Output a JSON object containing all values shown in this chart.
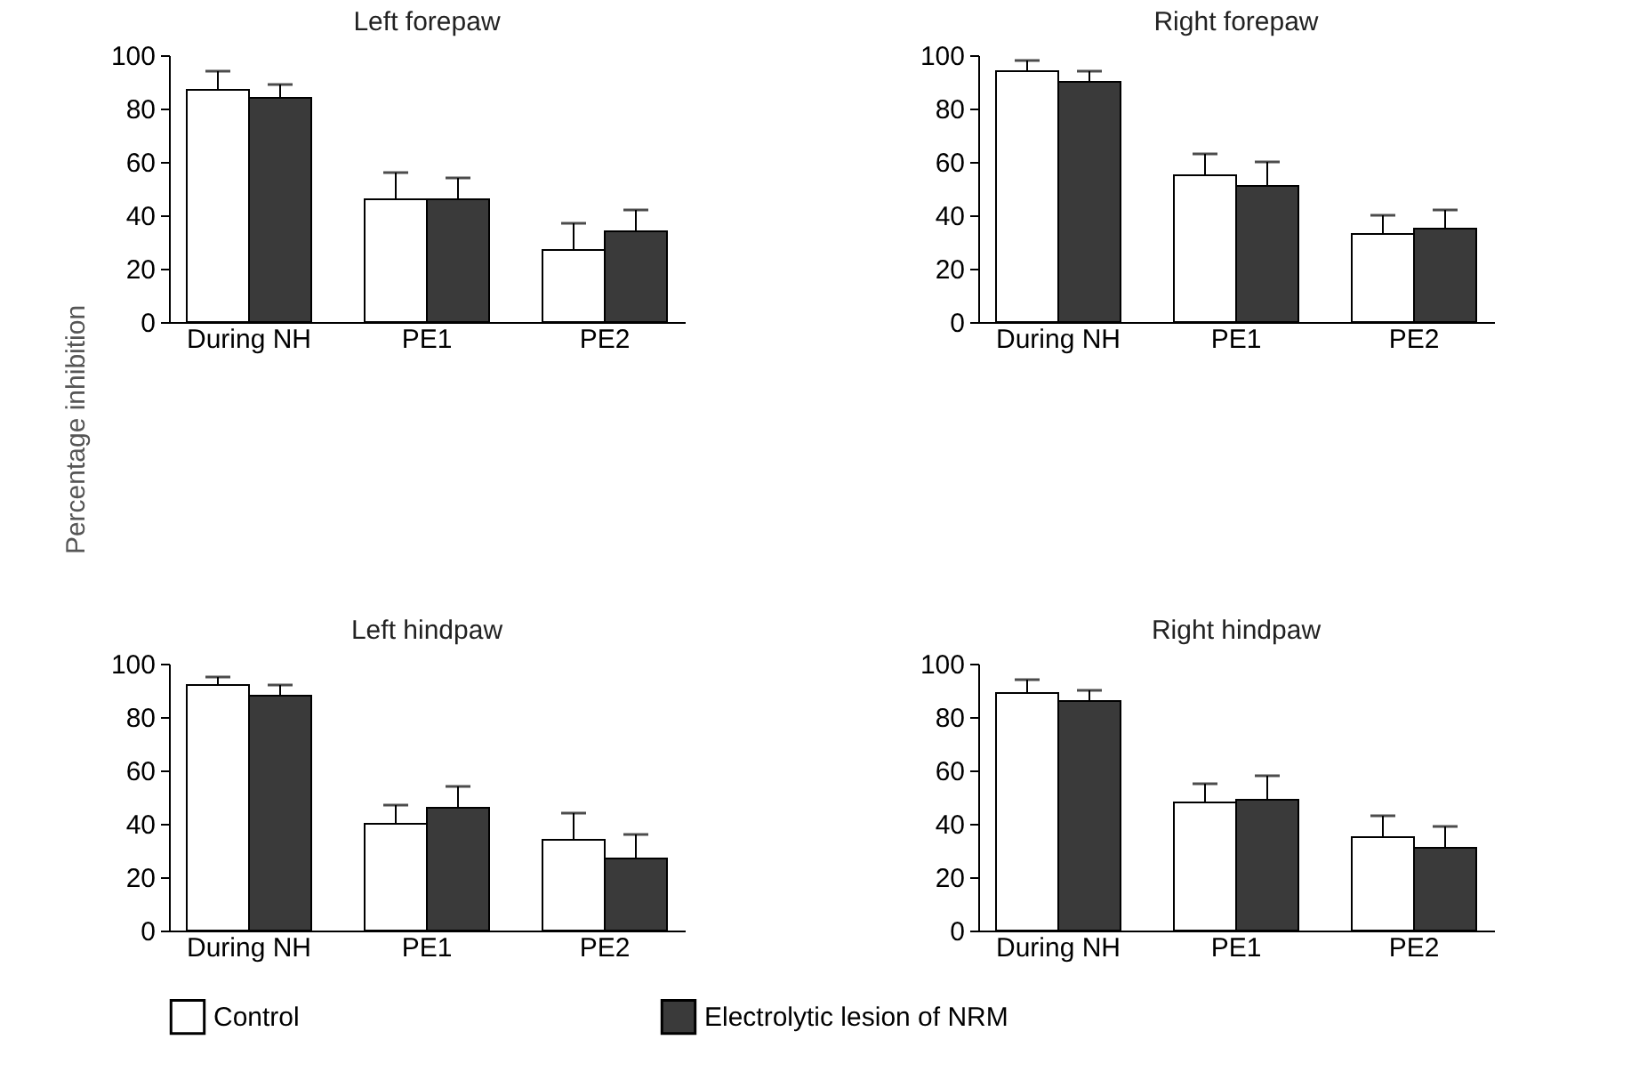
{
  "chart_data": [
    {
      "type": "bar",
      "title": "Left forepaw",
      "ylabel": "Percentage inhibition",
      "categories": [
        "During NH",
        "PE1",
        "PE2"
      ],
      "ylim": [
        0,
        100
      ],
      "yticks": [
        0,
        20,
        40,
        60,
        80,
        100
      ],
      "grid": false,
      "series": [
        {
          "color": "#ffffff",
          "values": [
            87,
            46,
            27
          ],
          "errors": [
            [
              87,
              94
            ],
            [
              46,
              56
            ],
            [
              27,
              37
            ]
          ]
        },
        {
          "color": "#3a3a3a",
          "values": [
            84,
            46,
            34
          ],
          "errors": [
            [
              84,
              89
            ],
            [
              46,
              54
            ],
            [
              34,
              42
            ]
          ]
        }
      ]
    },
    {
      "type": "bar",
      "title": "Right forepaw",
      "categories": [
        "During NH",
        "PE1",
        "PE2"
      ],
      "ylim": [
        0,
        100
      ],
      "yticks": [
        0,
        20,
        40,
        60,
        80,
        100
      ],
      "grid": false,
      "series": [
        {
          "color": "#ffffff",
          "values": [
            94,
            55,
            33
          ],
          "errors": [
            [
              94,
              98
            ],
            [
              55,
              63
            ],
            [
              33,
              40
            ]
          ]
        },
        {
          "color": "#3a3a3a",
          "values": [
            90,
            51,
            35
          ],
          "errors": [
            [
              90,
              94
            ],
            [
              51,
              60
            ],
            [
              35,
              42
            ]
          ]
        }
      ]
    },
    {
      "type": "bar",
      "title": "Left hindpaw",
      "categories": [
        "During NH",
        "PE1",
        "PE2"
      ],
      "ylim": [
        0,
        100
      ],
      "yticks": [
        0,
        20,
        40,
        60,
        80,
        100
      ],
      "grid": false,
      "legend": "bottom",
      "series": [
        {
          "name": "Control",
          "color": "#ffffff",
          "values": [
            92,
            40,
            34
          ],
          "errors": [
            [
              92,
              95
            ],
            [
              40,
              47
            ],
            [
              34,
              44
            ]
          ]
        },
        {
          "name": "Electrolytic lesion of NRM",
          "color": "#3a3a3a",
          "values": [
            88,
            46,
            27
          ],
          "errors": [
            [
              88,
              92
            ],
            [
              46,
              54
            ],
            [
              27,
              36
            ]
          ]
        }
      ]
    },
    {
      "type": "bar",
      "title": "Right hindpaw",
      "categories": [
        "During NH",
        "PE1",
        "PE2"
      ],
      "ylim": [
        0,
        100
      ],
      "yticks": [
        0,
        20,
        40,
        60,
        80,
        100
      ],
      "grid": false,
      "series": [
        {
          "color": "#ffffff",
          "values": [
            89,
            48,
            35
          ],
          "errors": [
            [
              89,
              94
            ],
            [
              48,
              55
            ],
            [
              35,
              43
            ]
          ]
        },
        {
          "color": "#3a3a3a",
          "values": [
            86,
            49,
            31
          ],
          "errors": [
            [
              86,
              90
            ],
            [
              49,
              58
            ],
            [
              31,
              39
            ]
          ]
        }
      ]
    }
  ]
}
